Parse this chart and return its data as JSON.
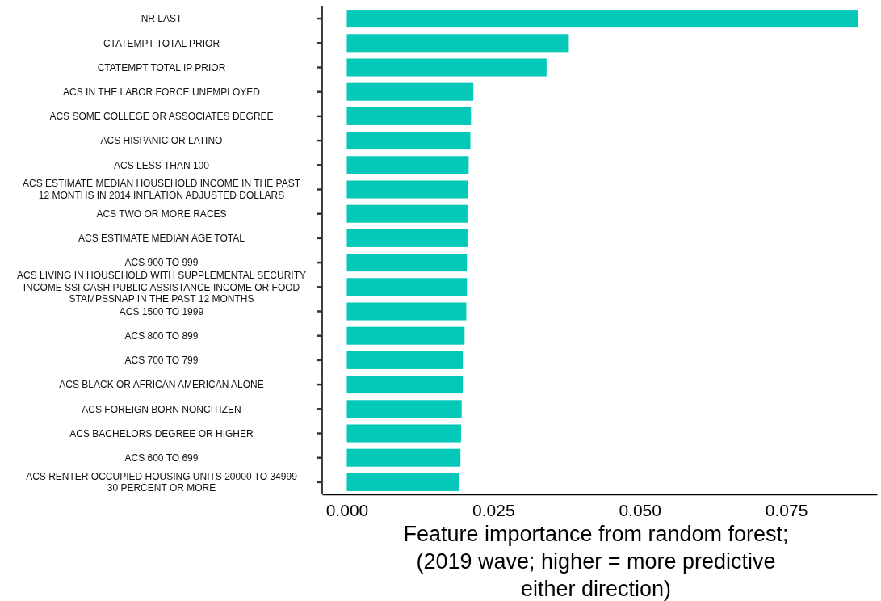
{
  "chart_data": {
    "type": "bar",
    "orientation": "horizontal",
    "xlabel": "Feature importance from random forest;\n(2019 wave; higher = more predictive\neither direction)",
    "categories": [
      "NR LAST",
      "CTATEMPT TOTAL PRIOR",
      "CTATEMPT TOTAL IP PRIOR",
      "ACS IN THE LABOR FORCE UNEMPLOYED",
      "ACS SOME COLLEGE OR ASSOCIATES DEGREE",
      "ACS HISPANIC OR LATINO",
      "ACS LESS THAN 100",
      "ACS ESTIMATE MEDIAN HOUSEHOLD INCOME IN THE PAST\n12 MONTHS IN 2014 INFLATION ADJUSTED DOLLARS",
      "ACS TWO OR MORE RACES",
      "ACS ESTIMATE MEDIAN AGE TOTAL",
      "ACS 900 TO 999",
      "ACS LIVING IN HOUSEHOLD WITH SUPPLEMENTAL SECURITY\nINCOME SSI CASH PUBLIC ASSISTANCE INCOME OR FOOD\nSTAMPSSNAP IN THE PAST 12 MONTHS",
      "ACS 1500 TO 1999",
      "ACS 800 TO 899",
      "ACS 700 TO 799",
      "ACS BLACK OR AFRICAN AMERICAN ALONE",
      "ACS FOREIGN BORN NONCITIZEN",
      "ACS BACHELORS DEGREE OR HIGHER",
      "ACS 600 TO 699",
      "ACS RENTER OCCUPIED HOUSING UNITS 20000 TO 34999\n30 PERCENT OR MORE"
    ],
    "values": [
      0.0872,
      0.0379,
      0.0341,
      0.0216,
      0.0212,
      0.0211,
      0.0208,
      0.0207,
      0.0206,
      0.0206,
      0.0205,
      0.0205,
      0.0204,
      0.0201,
      0.0198,
      0.0198,
      0.0196,
      0.0195,
      0.0194,
      0.0191
    ],
    "color": "#04c9b8",
    "xlim": [
      -0.0042,
      0.0905
    ],
    "xticks": [
      {
        "value": 0,
        "label": "0.000"
      },
      {
        "value": 0.025,
        "label": "0.025"
      },
      {
        "value": 0.05,
        "label": "0.050"
      },
      {
        "value": 0.075,
        "label": "0.075"
      }
    ],
    "grid": false
  }
}
